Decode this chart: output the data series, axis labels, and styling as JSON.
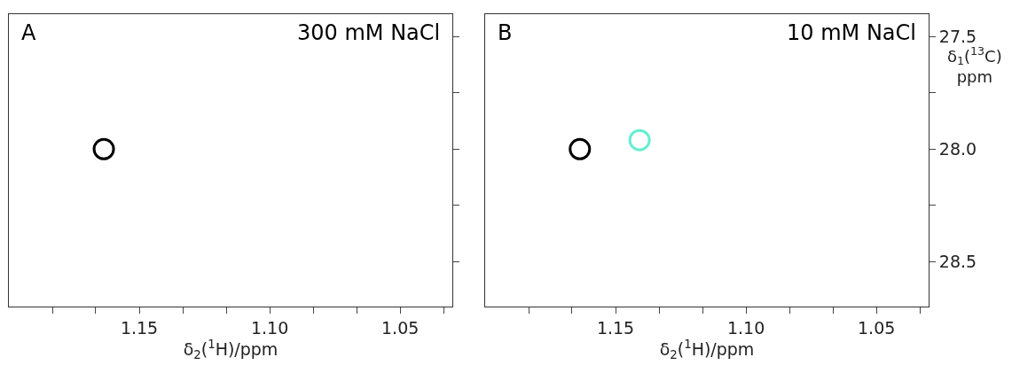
{
  "chart_data": [
    {
      "type": "scatter",
      "annotations": [
        "A",
        "300 mM NaCl"
      ],
      "xlabel": "δ$_{2}$($^{1}$H)/ppm",
      "tick_labels": "x",
      "marker": "circle",
      "series": [
        {
          "color": "#000000",
          "x": [
            1.1636
          ],
          "values": [
            28.0
          ]
        }
      ],
      "xlim": [
        1.2,
        1.03
      ],
      "xticks": [
        {
          "value": 1.1833,
          "label": null
        },
        {
          "value": 1.1667,
          "label": null
        },
        {
          "value": 1.15,
          "label": "1.15"
        },
        {
          "value": 1.1333,
          "label": null
        },
        {
          "value": 1.1167,
          "label": null
        },
        {
          "value": 1.1,
          "label": "1.10"
        },
        {
          "value": 1.0833,
          "label": null
        },
        {
          "value": 1.0667,
          "label": null
        },
        {
          "value": 1.05,
          "label": "1.05"
        },
        {
          "value": 1.0333,
          "label": null
        }
      ],
      "ylim": [
        28.7,
        27.4
      ],
      "yticks": [
        {
          "value": 27.5,
          "label": null
        },
        {
          "value": 27.75,
          "label": null
        },
        {
          "value": 28.0,
          "label": null
        },
        {
          "value": 28.25,
          "label": null
        },
        {
          "value": 28.5,
          "label": null
        }
      ]
    },
    {
      "type": "scatter",
      "annotations": [
        "B",
        "10 mM NaCl"
      ],
      "xlabel": "δ$_{2}$($^{1}$H)/ppm",
      "ylabel": "δ$_{1}$($^{13}$C)\nppm",
      "marker": "circle",
      "series": [
        {
          "color": "#000000",
          "x": [
            1.1637
          ],
          "values": [
            28.0
          ]
        },
        {
          "color": "#66eed0",
          "x": [
            1.1408
          ],
          "values": [
            27.96
          ]
        }
      ],
      "xlim": [
        1.2,
        1.03
      ],
      "xticks": [
        {
          "value": 1.1833,
          "label": null
        },
        {
          "value": 1.1667,
          "label": null
        },
        {
          "value": 1.15,
          "label": "1.15"
        },
        {
          "value": 1.1333,
          "label": null
        },
        {
          "value": 1.1167,
          "label": null
        },
        {
          "value": 1.1,
          "label": "1.10"
        },
        {
          "value": 1.0833,
          "label": null
        },
        {
          "value": 1.0667,
          "label": null
        },
        {
          "value": 1.05,
          "label": "1.05"
        },
        {
          "value": 1.0333,
          "label": null
        }
      ],
      "ylim": [
        28.7,
        27.4
      ],
      "yticks": [
        {
          "value": 27.5,
          "label": "27.5"
        },
        {
          "value": 27.75,
          "label": null
        },
        {
          "value": 28.0,
          "label": "28.0"
        },
        {
          "value": 28.25,
          "label": null
        },
        {
          "value": 28.5,
          "label": "28.5"
        }
      ]
    }
  ]
}
